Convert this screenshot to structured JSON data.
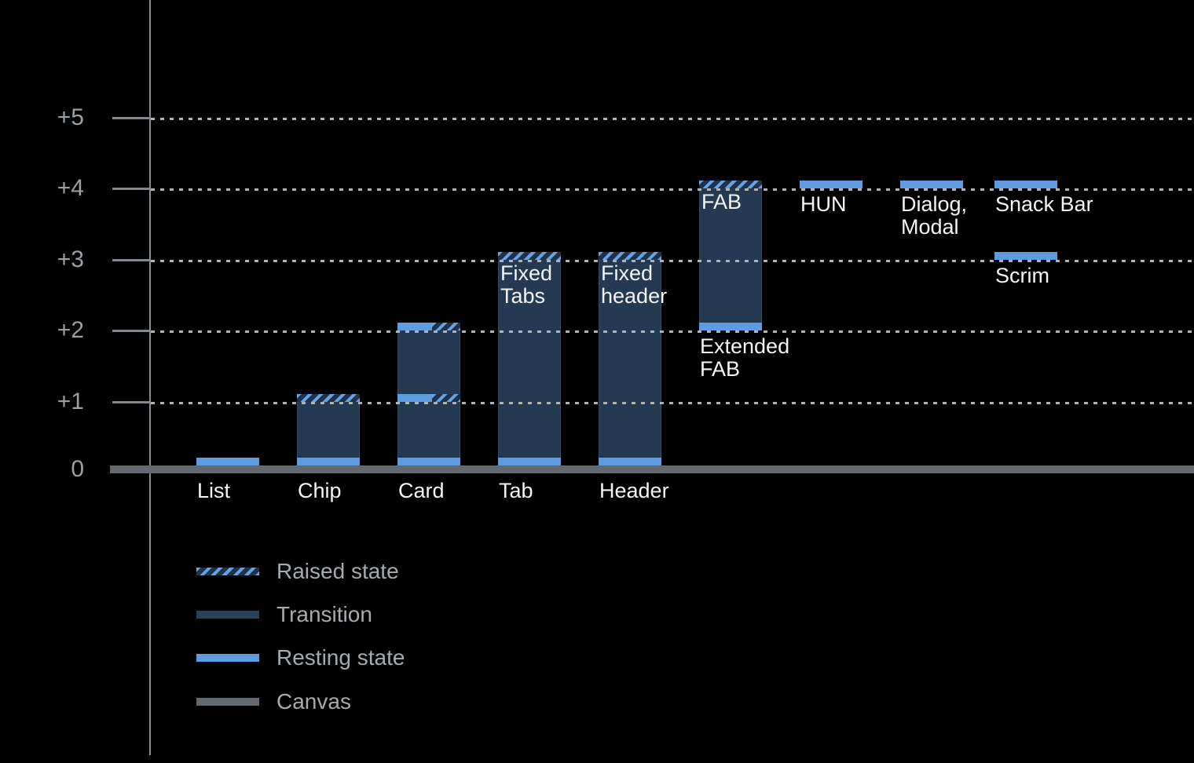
{
  "chart_data": {
    "type": "bar",
    "title": "",
    "xlabel": "",
    "ylabel": "",
    "ylim": [
      0,
      5.5
    ],
    "ytick_labels": [
      {
        "label": "+5",
        "level": 5
      },
      {
        "label": "+4",
        "level": 4
      },
      {
        "label": "+3",
        "level": 3
      },
      {
        "label": "+2",
        "level": 2
      },
      {
        "label": "+1",
        "level": 1
      },
      {
        "label": "0",
        "level": 0
      }
    ],
    "grid": "dotted horizontal lines at levels +1 through +5",
    "legend_position": "bottom-left",
    "legend": [
      {
        "label": "Raised state",
        "style": "raised"
      },
      {
        "label": "Transition",
        "style": "transition"
      },
      {
        "label": "Resting state",
        "style": "resting"
      },
      {
        "label": "Canvas",
        "style": "canvas"
      }
    ],
    "items": [
      {
        "id": "list",
        "label_lines": [
          "List"
        ],
        "col": 0,
        "resting_levels": [
          0
        ],
        "raised_levels": [],
        "split_levels": [],
        "transition": null,
        "label_pos": "baseline"
      },
      {
        "id": "chip",
        "label_lines": [
          "Chip"
        ],
        "col": 1,
        "resting_levels": [
          0
        ],
        "raised_levels": [
          1
        ],
        "split_levels": [],
        "transition": [
          0,
          1
        ],
        "label_pos": "baseline"
      },
      {
        "id": "card",
        "label_lines": [
          "Card"
        ],
        "col": 2,
        "resting_levels": [
          0
        ],
        "raised_levels": [],
        "split_levels": [
          1,
          2
        ],
        "transition": [
          0,
          2
        ],
        "label_pos": "baseline"
      },
      {
        "id": "tab",
        "label_lines": [
          "Tab"
        ],
        "col": 3,
        "resting_levels": [
          0
        ],
        "raised_levels": [
          3
        ],
        "split_levels": [],
        "transition": [
          0,
          3
        ],
        "inner_label_lines": [
          "Fixed",
          "Tabs"
        ],
        "label_pos": "baseline"
      },
      {
        "id": "header",
        "label_lines": [
          "Header"
        ],
        "col": 4,
        "resting_levels": [
          0
        ],
        "raised_levels": [
          3
        ],
        "split_levels": [],
        "transition": [
          0,
          3
        ],
        "inner_label_lines": [
          "Fixed",
          "header"
        ],
        "label_pos": "baseline"
      },
      {
        "id": "extended-fab",
        "label_lines": [
          "Extended",
          "FAB"
        ],
        "col": 5,
        "resting_levels": [
          2
        ],
        "raised_levels": [
          4
        ],
        "split_levels": [],
        "transition": [
          2,
          4
        ],
        "inner_label_lines": [
          "FAB"
        ],
        "label_pos": "below-bar"
      },
      {
        "id": "hun",
        "label_lines": [
          "HUN"
        ],
        "col": 6,
        "resting_levels": [
          4
        ],
        "raised_levels": [],
        "split_levels": [],
        "transition": null,
        "label_pos": "below-strip"
      },
      {
        "id": "dialog-modal",
        "label_lines": [
          "Dialog,",
          "Modal"
        ],
        "col": 7,
        "resting_levels": [
          4
        ],
        "raised_levels": [],
        "split_levels": [],
        "transition": null,
        "label_pos": "below-strip"
      },
      {
        "id": "snack-bar",
        "label_lines": [
          "Snack Bar"
        ],
        "col": 8,
        "resting_levels": [
          4
        ],
        "raised_levels": [],
        "split_levels": [],
        "transition": null,
        "label_pos": "below-strip"
      },
      {
        "id": "scrim",
        "label_lines": [
          "Scrim"
        ],
        "col": 8,
        "resting_levels": [
          3
        ],
        "raised_levels": [],
        "split_levels": [],
        "transition": null,
        "label_pos": "below-strip"
      }
    ],
    "colors": {
      "background": "#000000",
      "resting": "#5E9CE0",
      "raised_stripe": "#66A3E6",
      "raised_bg": "#1E3349",
      "transition": "#243A52",
      "canvas": "#64696F",
      "axis": "#878D93",
      "gridline": "#AEB3B8",
      "tick_label": "#9BA0A5",
      "bar_label": "#F2F4F5",
      "legend_text": "#A6ABB0"
    }
  }
}
